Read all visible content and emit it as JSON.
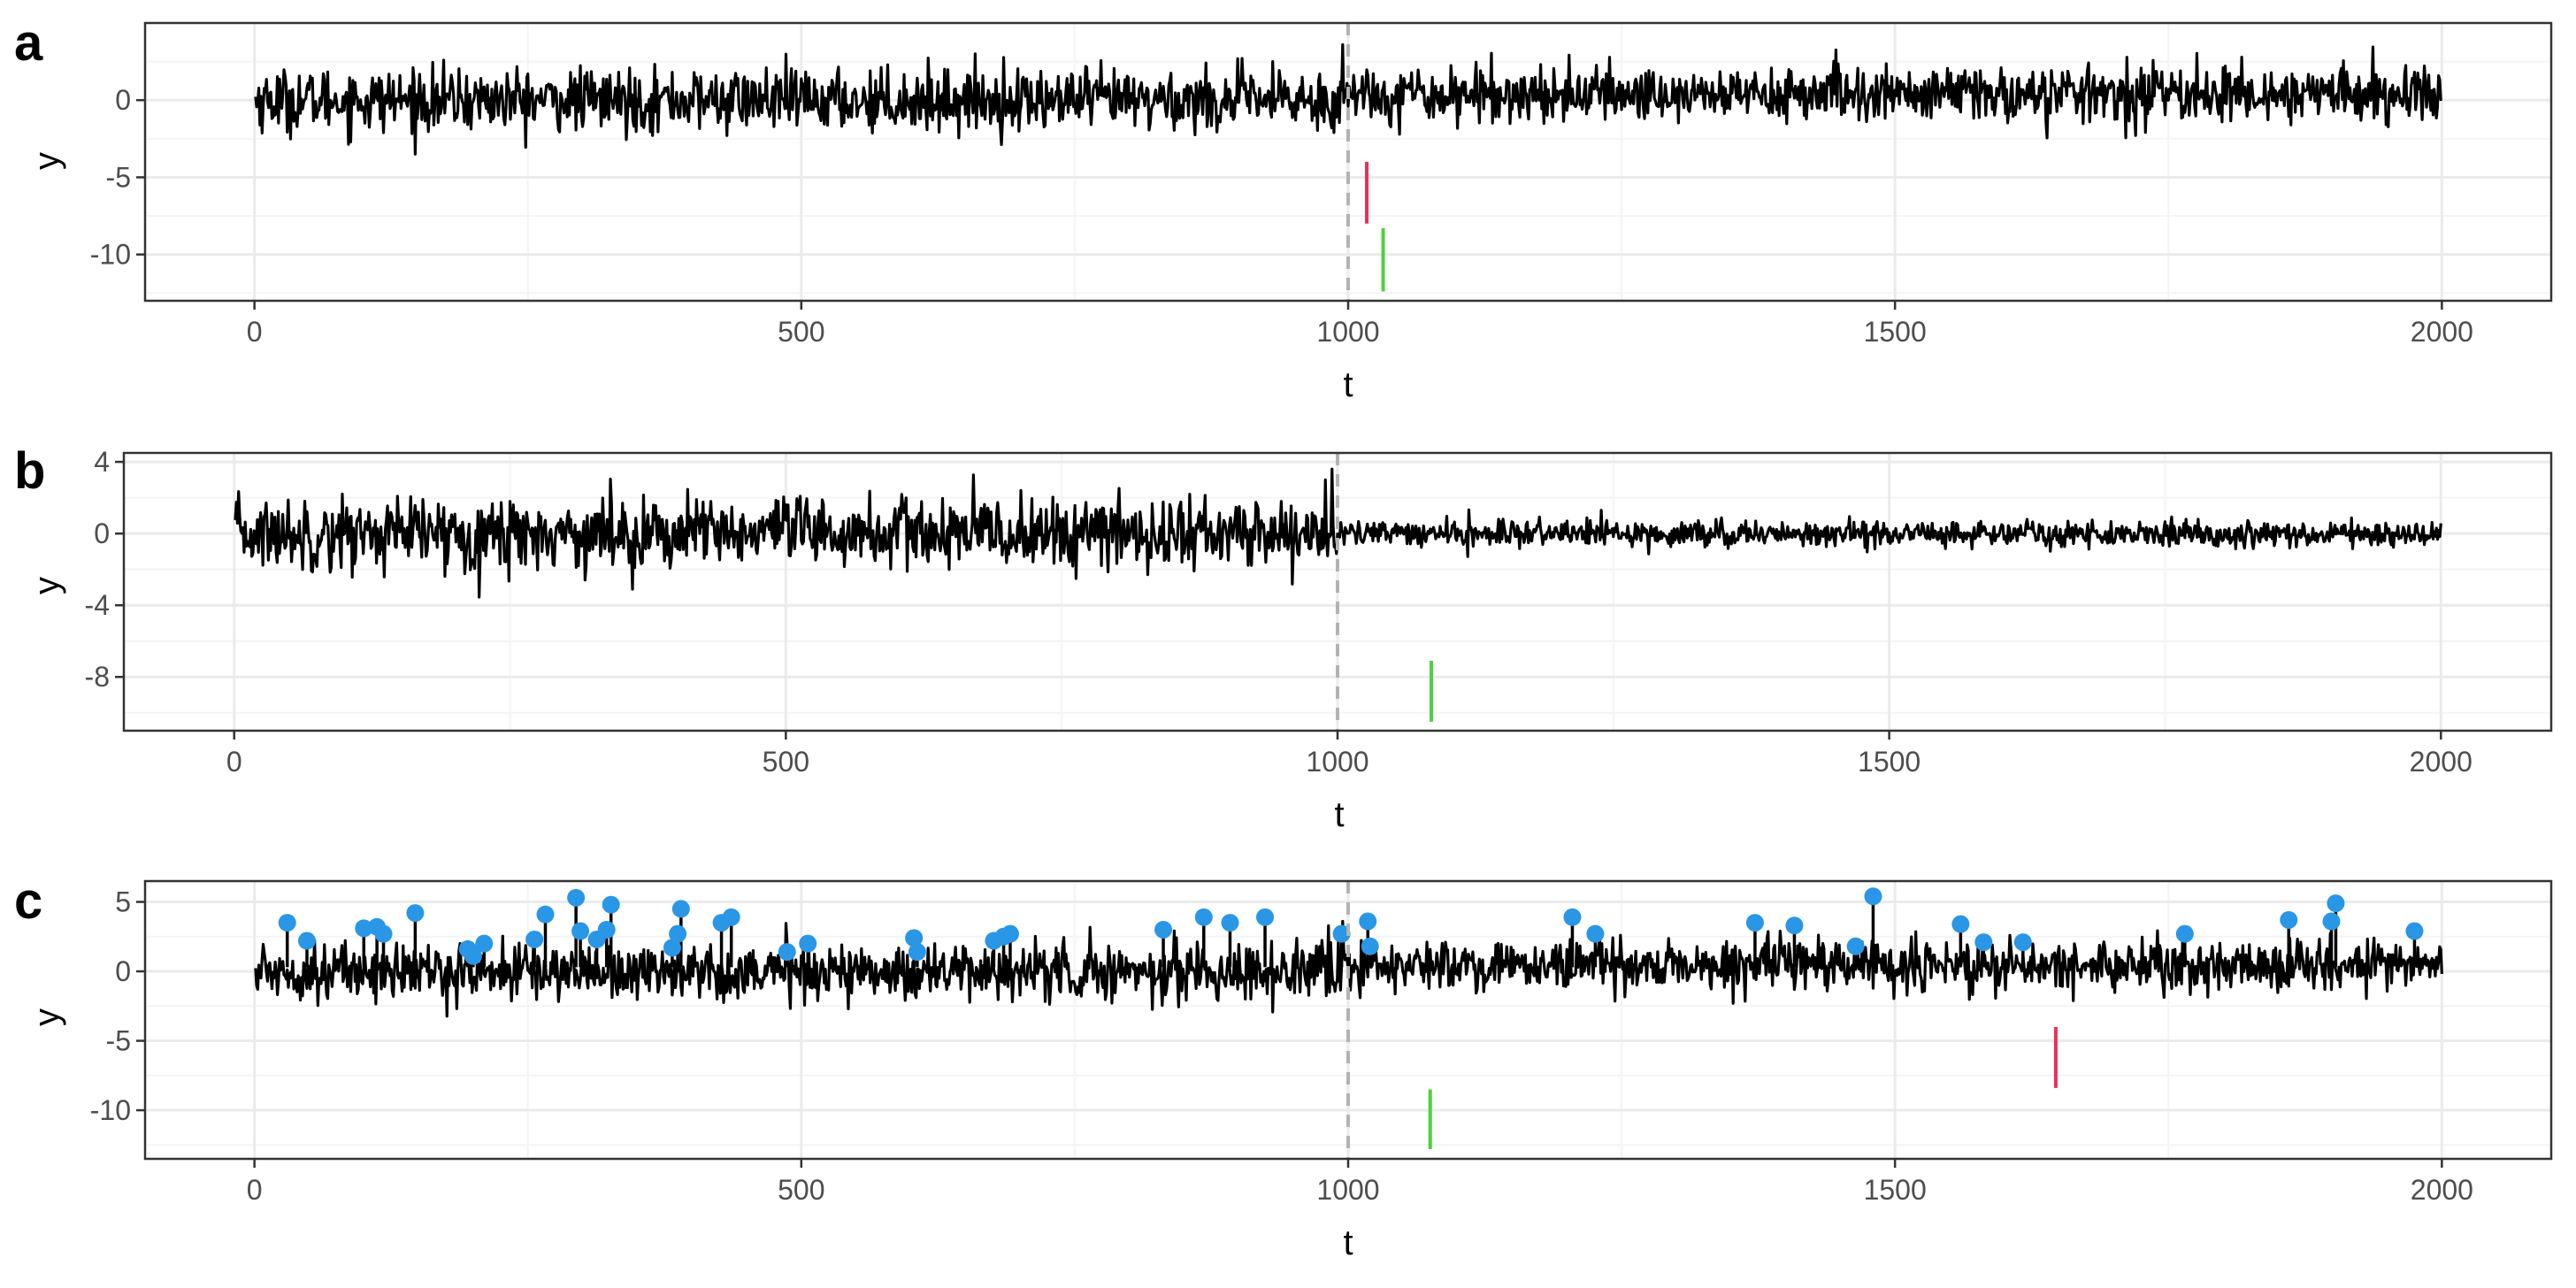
{
  "colors": {
    "line": "#000000",
    "change_point": "#b3b3b3",
    "red_marker": "#e8315a",
    "green_marker": "#4cd23c",
    "outlier": "#2a96e6",
    "grid_major": "#ebebeb",
    "grid_minor": "#f4f4f4",
    "border": "#333333"
  },
  "chart_data": [
    {
      "type": "line",
      "tag": "a",
      "xlabel": "t",
      "ylabel": "y",
      "xlim": [
        -100,
        2100
      ],
      "ylim": [
        -13,
        5
      ],
      "x_ticks": [
        0,
        500,
        1000,
        1500,
        2000
      ],
      "y_ticks": [
        0,
        -5,
        -10
      ],
      "y_tick_labels": [
        "0",
        "-5",
        "-10"
      ],
      "grid": true,
      "n_points": 2000,
      "series": [
        {
          "values_description_in_script": true
        }
      ],
      "change_point_x": 1000,
      "noise_sd_before": 1.0,
      "noise_sd_after": 0.9,
      "mean_shift_after": 0.4,
      "markers": [
        {
          "color": "red",
          "x": 1017,
          "y_from": -4,
          "y_to": -8
        },
        {
          "color": "green",
          "x": 1032,
          "y_from": -8.3,
          "y_to": -12.4
        }
      ],
      "outliers": []
    },
    {
      "type": "line",
      "tag": "b",
      "xlabel": "t",
      "ylabel": "y",
      "xlim": [
        -100,
        2100
      ],
      "ylim": [
        -11,
        4.5
      ],
      "x_ticks": [
        0,
        500,
        1000,
        1500,
        2000
      ],
      "y_ticks": [
        4,
        0,
        -4,
        -8
      ],
      "y_tick_labels": [
        "4",
        "0",
        "-4",
        "-8"
      ],
      "grid": true,
      "n_points": 2000,
      "change_point_x": 1000,
      "noise_sd_before": 1.0,
      "noise_sd_after": 0.35,
      "mean_shift_after": 0.0,
      "markers": [
        {
          "color": "green",
          "x": 1085,
          "y_from": -7.1,
          "y_to": -10.5
        }
      ],
      "outliers": []
    },
    {
      "type": "line",
      "tag": "c",
      "xlabel": "t",
      "ylabel": "y",
      "xlim": [
        -100,
        2100
      ],
      "ylim": [
        -13.5,
        6.5
      ],
      "x_ticks": [
        0,
        500,
        1000,
        1500,
        2000
      ],
      "y_ticks": [
        5,
        0,
        -5,
        -10
      ],
      "y_tick_labels": [
        "5",
        "0",
        "-5",
        "-10"
      ],
      "grid": true,
      "n_points": 2000,
      "change_point_x": 1000,
      "noise_sd_before": 1.0,
      "noise_sd_after": 0.9,
      "mean_shift_after": 0.4,
      "markers": [
        {
          "color": "red",
          "x": 1647,
          "y_from": -4,
          "y_to": -8.4
        },
        {
          "color": "green",
          "x": 1075,
          "y_from": -8.5,
          "y_to": -12.8
        }
      ],
      "outliers": [
        {
          "x": 30,
          "y": 3.5
        },
        {
          "x": 48,
          "y": 2.2
        },
        {
          "x": 100,
          "y": 3.1
        },
        {
          "x": 112,
          "y": 3.2
        },
        {
          "x": 118,
          "y": 2.7
        },
        {
          "x": 147,
          "y": 4.2
        },
        {
          "x": 195,
          "y": 1.6
        },
        {
          "x": 200,
          "y": 1.1
        },
        {
          "x": 210,
          "y": 2.0
        },
        {
          "x": 256,
          "y": 2.3
        },
        {
          "x": 266,
          "y": 4.1
        },
        {
          "x": 294,
          "y": 5.3
        },
        {
          "x": 298,
          "y": 2.9
        },
        {
          "x": 313,
          "y": 2.3
        },
        {
          "x": 322,
          "y": 3.0
        },
        {
          "x": 326,
          "y": 4.8
        },
        {
          "x": 382,
          "y": 1.7
        },
        {
          "x": 387,
          "y": 2.7
        },
        {
          "x": 390,
          "y": 4.5
        },
        {
          "x": 427,
          "y": 3.5
        },
        {
          "x": 436,
          "y": 3.9
        },
        {
          "x": 487,
          "y": 1.4
        },
        {
          "x": 506,
          "y": 2.0
        },
        {
          "x": 603,
          "y": 2.4
        },
        {
          "x": 606,
          "y": 1.4
        },
        {
          "x": 676,
          "y": 2.2
        },
        {
          "x": 685,
          "y": 2.5
        },
        {
          "x": 691,
          "y": 2.7
        },
        {
          "x": 831,
          "y": 3.0
        },
        {
          "x": 868,
          "y": 3.9
        },
        {
          "x": 892,
          "y": 3.5
        },
        {
          "x": 924,
          "y": 3.9
        },
        {
          "x": 994,
          "y": 2.7
        },
        {
          "x": 1018,
          "y": 3.6
        },
        {
          "x": 1020,
          "y": 1.8
        },
        {
          "x": 1205,
          "y": 3.9
        },
        {
          "x": 1226,
          "y": 2.7
        },
        {
          "x": 1372,
          "y": 3.5
        },
        {
          "x": 1408,
          "y": 3.3
        },
        {
          "x": 1464,
          "y": 1.8
        },
        {
          "x": 1480,
          "y": 5.4
        },
        {
          "x": 1560,
          "y": 3.4
        },
        {
          "x": 1581,
          "y": 2.1
        },
        {
          "x": 1617,
          "y": 2.1
        },
        {
          "x": 1765,
          "y": 2.7
        },
        {
          "x": 1860,
          "y": 3.7
        },
        {
          "x": 1899,
          "y": 3.6
        },
        {
          "x": 1903,
          "y": 4.9
        },
        {
          "x": 1975,
          "y": 2.9
        }
      ]
    }
  ]
}
